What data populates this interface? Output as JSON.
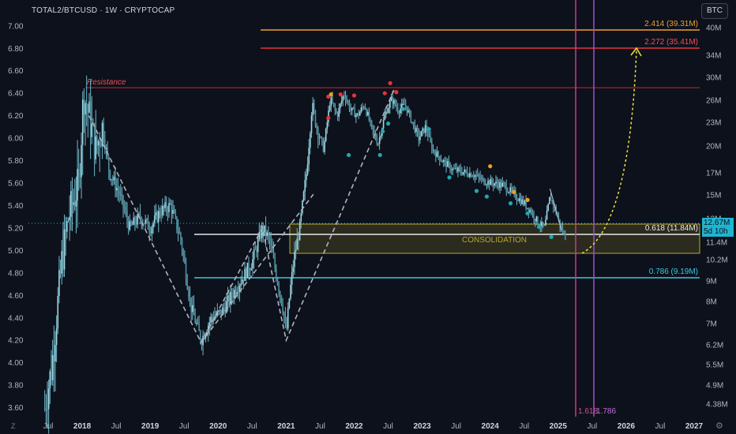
{
  "header": {
    "title": "TOTAL2/BTCUSD · 1W · CRYPTOCAP"
  },
  "currency_button": "BTC",
  "price_tag": {
    "value": "12.67M",
    "countdown": "5d 10h"
  },
  "colors": {
    "background": "#0d111b",
    "candle": "#6fb8c8",
    "resistance": "#c8283c",
    "fib_2414": "#f0a030",
    "fib_2272": "#e8323c",
    "fib_0618": "#e8e8e8",
    "fib_0786": "#3cc8e0",
    "consolidation": "#b8a830",
    "projection": "#f0e040",
    "vline_1": "#c83c8c",
    "vline_2": "#a050c8",
    "dot_red": "#e8323c",
    "dot_orange": "#f0a020",
    "dot_teal": "#20a8b0"
  },
  "chart_data": {
    "type": "candlestick",
    "title": "TOTAL2/BTCUSD 1W CRYPTOCAP",
    "left_axis": {
      "ticks": [
        "3.60",
        "3.80",
        "4.00",
        "4.20",
        "4.40",
        "4.60",
        "4.80",
        "5.00",
        "5.20",
        "5.40",
        "5.60",
        "5.80",
        "6.00",
        "6.20",
        "6.40",
        "6.60",
        "6.80",
        "7.00"
      ],
      "range": [
        3.52,
        7.09
      ]
    },
    "right_axis": {
      "ticks": [
        "40M",
        "34M",
        "30M",
        "26M",
        "23M",
        "20M",
        "17M",
        "15M",
        "13M",
        "11.4M",
        "10.2M",
        "9M",
        "8M",
        "7M",
        "6.2M",
        "5.5M",
        "4.9M",
        "4.38M"
      ]
    },
    "x_axis": {
      "ticks": [
        "Jul",
        "2018",
        "Jul",
        "2019",
        "Jul",
        "2020",
        "Jul",
        "2021",
        "Jul",
        "2022",
        "Jul",
        "2023",
        "Jul",
        "2024",
        "Jul",
        "2025",
        "Jul",
        "2026",
        "Jul",
        "2027"
      ]
    },
    "close_path": [
      {
        "t": 2017.45,
        "v": 3.6
      },
      {
        "t": 2017.55,
        "v": 3.95
      },
      {
        "t": 2017.7,
        "v": 4.9
      },
      {
        "t": 2017.8,
        "v": 5.3
      },
      {
        "t": 2017.95,
        "v": 5.6
      },
      {
        "t": 2018.02,
        "v": 6.4
      },
      {
        "t": 2018.1,
        "v": 6.2
      },
      {
        "t": 2018.2,
        "v": 5.9
      },
      {
        "t": 2018.3,
        "v": 6.1
      },
      {
        "t": 2018.4,
        "v": 5.7
      },
      {
        "t": 2018.55,
        "v": 5.5
      },
      {
        "t": 2018.7,
        "v": 5.2
      },
      {
        "t": 2018.85,
        "v": 5.3
      },
      {
        "t": 2019.0,
        "v": 5.2
      },
      {
        "t": 2019.15,
        "v": 5.35
      },
      {
        "t": 2019.3,
        "v": 5.4
      },
      {
        "t": 2019.45,
        "v": 5.1
      },
      {
        "t": 2019.6,
        "v": 4.5
      },
      {
        "t": 2019.75,
        "v": 4.2
      },
      {
        "t": 2019.9,
        "v": 4.4
      },
      {
        "t": 2020.05,
        "v": 4.45
      },
      {
        "t": 2020.2,
        "v": 4.6
      },
      {
        "t": 2020.35,
        "v": 4.75
      },
      {
        "t": 2020.5,
        "v": 4.9
      },
      {
        "t": 2020.65,
        "v": 5.2
      },
      {
        "t": 2020.75,
        "v": 5.1
      },
      {
        "t": 2020.85,
        "v": 4.8
      },
      {
        "t": 2020.95,
        "v": 4.5
      },
      {
        "t": 2021.0,
        "v": 4.25
      },
      {
        "t": 2021.05,
        "v": 4.6
      },
      {
        "t": 2021.12,
        "v": 4.95
      },
      {
        "t": 2021.2,
        "v": 5.2
      },
      {
        "t": 2021.3,
        "v": 5.7
      },
      {
        "t": 2021.38,
        "v": 6.3
      },
      {
        "t": 2021.45,
        "v": 6.1
      },
      {
        "t": 2021.55,
        "v": 5.9
      },
      {
        "t": 2021.65,
        "v": 6.35
      },
      {
        "t": 2021.75,
        "v": 6.2
      },
      {
        "t": 2021.85,
        "v": 6.4
      },
      {
        "t": 2021.95,
        "v": 6.25
      },
      {
        "t": 2022.05,
        "v": 6.2
      },
      {
        "t": 2022.15,
        "v": 6.3
      },
      {
        "t": 2022.25,
        "v": 6.1
      },
      {
        "t": 2022.35,
        "v": 5.95
      },
      {
        "t": 2022.45,
        "v": 6.2
      },
      {
        "t": 2022.55,
        "v": 6.35
      },
      {
        "t": 2022.65,
        "v": 6.25
      },
      {
        "t": 2022.75,
        "v": 6.3
      },
      {
        "t": 2022.85,
        "v": 6.15
      },
      {
        "t": 2022.95,
        "v": 6.0
      },
      {
        "t": 2023.05,
        "v": 6.1
      },
      {
        "t": 2023.15,
        "v": 5.9
      },
      {
        "t": 2023.3,
        "v": 5.8
      },
      {
        "t": 2023.45,
        "v": 5.72
      },
      {
        "t": 2023.6,
        "v": 5.7
      },
      {
        "t": 2023.75,
        "v": 5.68
      },
      {
        "t": 2023.9,
        "v": 5.62
      },
      {
        "t": 2024.05,
        "v": 5.6
      },
      {
        "t": 2024.2,
        "v": 5.58
      },
      {
        "t": 2024.35,
        "v": 5.5
      },
      {
        "t": 2024.5,
        "v": 5.42
      },
      {
        "t": 2024.6,
        "v": 5.35
      },
      {
        "t": 2024.7,
        "v": 5.25
      },
      {
        "t": 2024.8,
        "v": 5.2
      },
      {
        "t": 2024.88,
        "v": 5.48
      },
      {
        "t": 2024.96,
        "v": 5.36
      },
      {
        "t": 2025.04,
        "v": 5.2
      },
      {
        "t": 2025.1,
        "v": 5.12
      }
    ],
    "annotations": {
      "resistance_label": "Resistance",
      "consolidation_label": "CONSOLIDATION",
      "fib_2414": "2.414 (39.31M)",
      "fib_2272": "2.272 (35.41M)",
      "fib_0618": "0.618 (11.84M)",
      "fib_0786": "0.786 (9.19M)",
      "fib_1618": "1.618",
      "fib_1786": "1.786"
    },
    "dots": [
      {
        "t": 2021.62,
        "v": 6.37,
        "c": "red"
      },
      {
        "t": 2021.66,
        "v": 6.39,
        "c": "orange"
      },
      {
        "t": 2021.8,
        "v": 6.39,
        "c": "red"
      },
      {
        "t": 2022.0,
        "v": 6.38,
        "c": "red"
      },
      {
        "t": 2022.45,
        "v": 6.4,
        "c": "red"
      },
      {
        "t": 2022.53,
        "v": 6.49,
        "c": "red"
      },
      {
        "t": 2022.62,
        "v": 6.41,
        "c": "red"
      },
      {
        "t": 2021.62,
        "v": 6.18,
        "c": "red"
      },
      {
        "t": 2024.0,
        "v": 5.75,
        "c": "orange"
      },
      {
        "t": 2024.35,
        "v": 5.52,
        "c": "orange"
      },
      {
        "t": 2024.55,
        "v": 5.45,
        "c": "orange"
      },
      {
        "t": 2021.92,
        "v": 5.85,
        "c": "teal"
      },
      {
        "t": 2022.38,
        "v": 5.85,
        "c": "teal"
      },
      {
        "t": 2022.42,
        "v": 6.06,
        "c": "teal"
      },
      {
        "t": 2022.5,
        "v": 6.13,
        "c": "teal"
      },
      {
        "t": 2022.72,
        "v": 6.26,
        "c": "teal"
      },
      {
        "t": 2023.1,
        "v": 6.08,
        "c": "teal"
      },
      {
        "t": 2023.4,
        "v": 5.65,
        "c": "teal"
      },
      {
        "t": 2023.8,
        "v": 5.53,
        "c": "teal"
      },
      {
        "t": 2023.95,
        "v": 5.48,
        "c": "teal"
      },
      {
        "t": 2024.3,
        "v": 5.42,
        "c": "teal"
      },
      {
        "t": 2024.55,
        "v": 5.33,
        "c": "teal"
      },
      {
        "t": 2024.72,
        "v": 5.21,
        "c": "teal"
      },
      {
        "t": 2024.9,
        "v": 5.12,
        "c": "teal"
      }
    ]
  }
}
